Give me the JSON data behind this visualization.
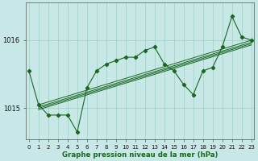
{
  "xlabel": "Graphe pression niveau de la mer (hPa)",
  "background_color": "#c8e8e8",
  "grid_color": "#9fcfbf",
  "line_color": "#1a6622",
  "x": [
    0,
    1,
    2,
    3,
    4,
    5,
    6,
    7,
    8,
    9,
    10,
    11,
    12,
    13,
    14,
    15,
    16,
    17,
    18,
    19,
    20,
    21,
    22,
    23
  ],
  "series_main": [
    1015.55,
    1015.05,
    1014.9,
    1014.9,
    1014.9,
    1014.65,
    1015.3,
    1015.55,
    1015.65,
    1015.7,
    1015.75,
    1015.75,
    1015.85,
    1015.9,
    1015.65,
    1015.55,
    1015.35,
    1015.2,
    1015.55,
    1015.6,
    1015.9,
    1016.35,
    1016.05,
    1016.0
  ],
  "trend_lines": [
    {
      "x0": 1,
      "y0": 1015.05,
      "x1": 23,
      "y1": 1016.0
    },
    {
      "x0": 1,
      "y0": 1015.0,
      "x1": 23,
      "y1": 1015.95
    },
    {
      "x0": 1,
      "y0": 1015.02,
      "x1": 23,
      "y1": 1015.97
    },
    {
      "x0": 1,
      "y0": 1014.98,
      "x1": 23,
      "y1": 1015.93
    }
  ],
  "yticks": [
    1015,
    1016
  ],
  "ylim": [
    1014.55,
    1016.55
  ],
  "xlim": [
    -0.3,
    23.3
  ],
  "xticks": [
    0,
    1,
    2,
    3,
    4,
    5,
    6,
    7,
    8,
    9,
    10,
    11,
    12,
    13,
    14,
    15,
    16,
    17,
    18,
    19,
    20,
    21,
    22,
    23
  ]
}
